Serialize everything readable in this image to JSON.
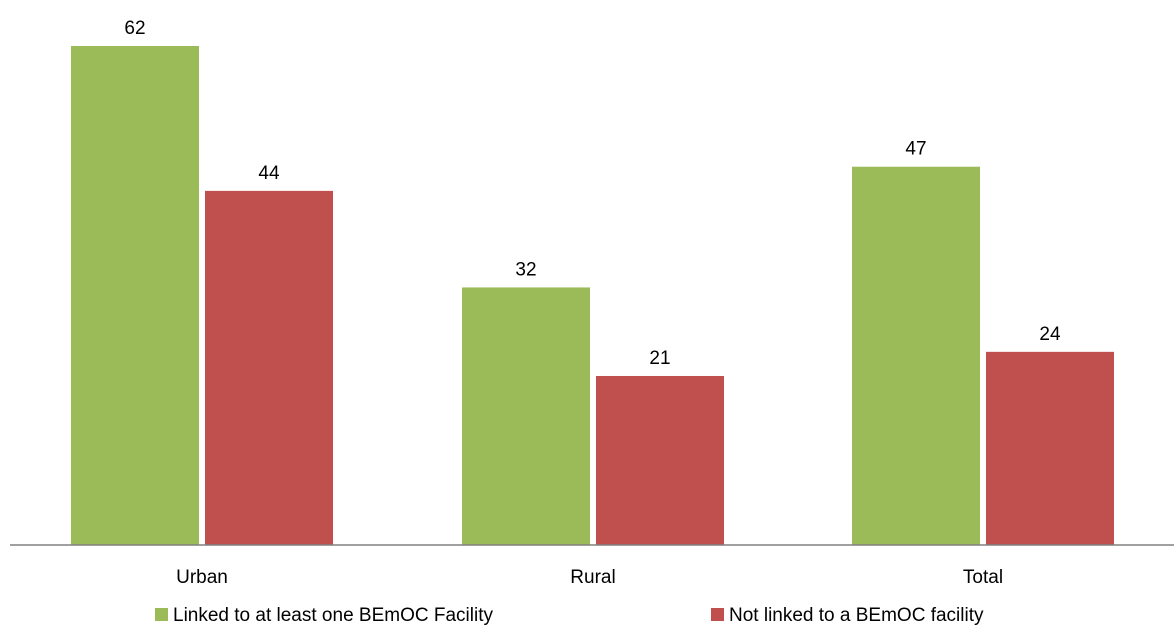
{
  "chart_data": {
    "type": "bar",
    "title": "",
    "xlabel": "",
    "ylabel": "",
    "categories": [
      "Urban",
      "Rural",
      "Total"
    ],
    "series": [
      {
        "name": "Linked to at least one BEmOC Facility",
        "color": "#9BBB59",
        "values": [
          62,
          32,
          47
        ]
      },
      {
        "name": "Not linked to a BEmOC facility",
        "color": "#C0504D",
        "values": [
          44,
          21,
          24
        ]
      }
    ],
    "ylim": [
      0,
      62
    ],
    "grid": false,
    "legend_position": "bottom",
    "data_labels": true
  }
}
